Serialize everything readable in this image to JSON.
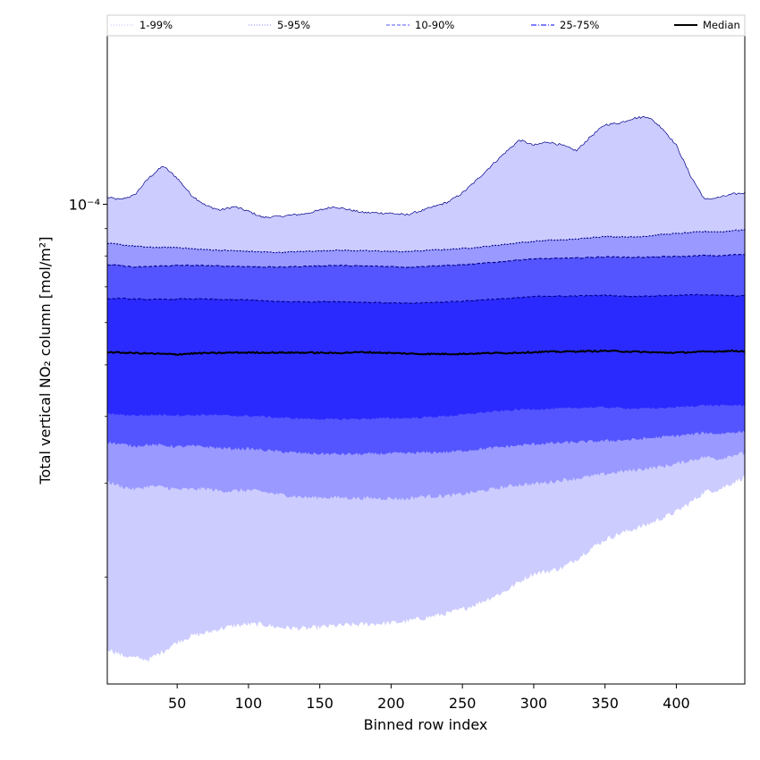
{
  "chart_data": {
    "type": "area",
    "title": "",
    "xlabel": "Binned row index",
    "ylabel": "Total vertical NO₂ column [mol/m²]",
    "yscale": "log",
    "xlim": [
      1,
      448
    ],
    "ylim": [
      1.26e-05,
      0.000207
    ],
    "grid": false,
    "x_ticks": [
      50,
      100,
      150,
      200,
      250,
      300,
      350,
      400
    ],
    "y_ticks": [
      {
        "value": 0.0001,
        "label": "10⁻⁴",
        "major": true
      },
      {
        "value": 2e-05,
        "label": "",
        "major": false
      },
      {
        "value": 3e-05,
        "label": "",
        "major": false
      },
      {
        "value": 4e-05,
        "label": "",
        "major": false
      },
      {
        "value": 5e-05,
        "label": "",
        "major": false
      },
      {
        "value": 6e-05,
        "label": "",
        "major": false
      },
      {
        "value": 7e-05,
        "label": "",
        "major": false
      },
      {
        "value": 8e-05,
        "label": "",
        "major": false
      },
      {
        "value": 9e-05,
        "label": "",
        "major": false
      }
    ],
    "legend_position": "top, above plot",
    "legend": [
      {
        "label": "1-99%",
        "color": "#ccccff",
        "style": "dotted"
      },
      {
        "label": "5-95%",
        "color": "#9999ff",
        "style": "dotted"
      },
      {
        "label": "10-90%",
        "color": "#7777ff",
        "style": "dashed"
      },
      {
        "label": "25-75%",
        "color": "#3333ff",
        "style": "dashdot"
      },
      {
        "label": "Median",
        "color": "#000000",
        "style": "solid"
      }
    ],
    "x_nodes": [
      1,
      10,
      20,
      30,
      40,
      50,
      60,
      70,
      80,
      90,
      100,
      110,
      120,
      140,
      160,
      180,
      200,
      210,
      220,
      240,
      250,
      260,
      270,
      280,
      290,
      300,
      310,
      320,
      330,
      340,
      350,
      360,
      370,
      380,
      390,
      400,
      410,
      420,
      430,
      440,
      448
    ],
    "bands": [
      {
        "name": "1-99%",
        "fill": "#ccccff",
        "edge": "#00008b",
        "upper": [
          0.000103,
          0.000102,
          0.000104,
          0.000112,
          0.000118,
          0.000112,
          0.000104,
          9.95e-05,
          9.75e-05,
          9.9e-05,
          9.7e-05,
          9.45e-05,
          9.48e-05,
          9.6e-05,
          9.9e-05,
          9.65e-05,
          9.62e-05,
          9.55e-05,
          9.7e-05,
          0.000101,
          0.000105,
          0.000111,
          0.000118,
          0.000125,
          0.000132,
          0.000129,
          0.000131,
          0.000129,
          0.000126,
          0.000134,
          0.000141,
          0.000142,
          0.000145,
          0.000146,
          0.000139,
          0.000129,
          0.000113,
          0.000102,
          0.000103,
          0.0001045,
          0.000105
        ],
        "lower": [
          1.47e-05,
          1.43e-05,
          1.41e-05,
          1.4e-05,
          1.45e-05,
          1.51e-05,
          1.55e-05,
          1.57e-05,
          1.6e-05,
          1.62e-05,
          1.63e-05,
          1.63e-05,
          1.61e-05,
          1.6e-05,
          1.62e-05,
          1.63e-05,
          1.64e-05,
          1.65e-05,
          1.67e-05,
          1.71e-05,
          1.74e-05,
          1.78e-05,
          1.83e-05,
          1.88e-05,
          1.96e-05,
          2.03e-05,
          2.05e-05,
          2.08e-05,
          2.16e-05,
          2.26e-05,
          2.35e-05,
          2.41e-05,
          2.46e-05,
          2.51e-05,
          2.58e-05,
          2.65e-05,
          2.76e-05,
          2.89e-05,
          2.92e-05,
          3.01e-05,
          3.08e-05
        ]
      },
      {
        "name": "5-95%",
        "fill": "#9999ff",
        "edge": "#00008b",
        "upper": [
          8.45e-05,
          8.4e-05,
          8.35e-05,
          8.3e-05,
          8.3e-05,
          8.3e-05,
          8.25e-05,
          8.22e-05,
          8.2e-05,
          8.18e-05,
          8.16e-05,
          8.14e-05,
          8.12e-05,
          8.16e-05,
          8.2e-05,
          8.18e-05,
          8.16e-05,
          8.15e-05,
          8.18e-05,
          8.23e-05,
          8.26e-05,
          8.3e-05,
          8.35e-05,
          8.41e-05,
          8.47e-05,
          8.52e-05,
          8.56e-05,
          8.57e-05,
          8.6e-05,
          8.66e-05,
          8.7e-05,
          8.69e-05,
          8.68e-05,
          8.72e-05,
          8.78e-05,
          8.81e-05,
          8.85e-05,
          8.89e-05,
          8.87e-05,
          8.93e-05,
          8.95e-05
        ],
        "lower": [
          3.02e-05,
          2.96e-05,
          2.92e-05,
          2.96e-05,
          2.95e-05,
          2.92e-05,
          2.92e-05,
          2.93e-05,
          2.9e-05,
          2.9e-05,
          2.91e-05,
          2.89e-05,
          2.86e-05,
          2.82e-05,
          2.82e-05,
          2.81e-05,
          2.81e-05,
          2.8e-05,
          2.83e-05,
          2.84e-05,
          2.86e-05,
          2.89e-05,
          2.92e-05,
          2.95e-05,
          2.98e-05,
          2.99e-05,
          3.01e-05,
          3.04e-05,
          3.06e-05,
          3.09e-05,
          3.12e-05,
          3.15e-05,
          3.17e-05,
          3.2e-05,
          3.22e-05,
          3.26e-05,
          3.31e-05,
          3.36e-05,
          3.33e-05,
          3.39e-05,
          3.41e-05
        ]
      },
      {
        "name": "10-90%",
        "fill": "#5555ff",
        "edge": "#00008b",
        "upper": [
          7.7e-05,
          7.68e-05,
          7.62e-05,
          7.64e-05,
          7.66e-05,
          7.68e-05,
          7.68e-05,
          7.67e-05,
          7.66e-05,
          7.65e-05,
          7.64e-05,
          7.63e-05,
          7.62e-05,
          7.65e-05,
          7.68e-05,
          7.66e-05,
          7.64e-05,
          7.62e-05,
          7.64e-05,
          7.68e-05,
          7.7e-05,
          7.73e-05,
          7.77e-05,
          7.82e-05,
          7.87e-05,
          7.9e-05,
          7.91e-05,
          7.92e-05,
          7.93e-05,
          7.95e-05,
          7.97e-05,
          7.96e-05,
          7.95e-05,
          7.96e-05,
          7.97e-05,
          7.98e-05,
          7.99e-05,
          8.02e-05,
          8e-05,
          8.04e-05,
          8.06e-05
        ],
        "lower": [
          3.58e-05,
          3.55e-05,
          3.52e-05,
          3.54e-05,
          3.53e-05,
          3.51e-05,
          3.52e-05,
          3.51e-05,
          3.49e-05,
          3.48e-05,
          3.48e-05,
          3.46e-05,
          3.44e-05,
          3.41e-05,
          3.4e-05,
          3.4e-05,
          3.41e-05,
          3.41e-05,
          3.42e-05,
          3.43e-05,
          3.45e-05,
          3.47e-05,
          3.49e-05,
          3.51e-05,
          3.53e-05,
          3.55e-05,
          3.56e-05,
          3.57e-05,
          3.58e-05,
          3.59e-05,
          3.6e-05,
          3.61e-05,
          3.62e-05,
          3.64e-05,
          3.66e-05,
          3.68e-05,
          3.7e-05,
          3.73e-05,
          3.71e-05,
          3.74e-05,
          3.74e-05
        ]
      },
      {
        "name": "25-75%",
        "fill": "#2a2aff",
        "edge": "#00008b",
        "upper": [
          6.65e-05,
          6.66e-05,
          6.64e-05,
          6.63e-05,
          6.63e-05,
          6.64e-05,
          6.65e-05,
          6.64e-05,
          6.63e-05,
          6.62e-05,
          6.62e-05,
          6.59e-05,
          6.57e-05,
          6.56e-05,
          6.57e-05,
          6.55e-05,
          6.53e-05,
          6.52e-05,
          6.53e-05,
          6.56e-05,
          6.58e-05,
          6.61e-05,
          6.63e-05,
          6.65e-05,
          6.68e-05,
          6.71e-05,
          6.73e-05,
          6.72e-05,
          6.73e-05,
          6.74e-05,
          6.75e-05,
          6.73e-05,
          6.72e-05,
          6.73e-05,
          6.74e-05,
          6.75e-05,
          6.76e-05,
          6.77e-05,
          6.75e-05,
          6.74e-05,
          6.73e-05
        ],
        "lower": [
          4.05e-05,
          4.03e-05,
          4.02e-05,
          4.02e-05,
          4.03e-05,
          4.02e-05,
          4.02e-05,
          4.03e-05,
          4.02e-05,
          4.01e-05,
          4.01e-05,
          4e-05,
          3.98e-05,
          3.96e-05,
          3.95e-05,
          3.96e-05,
          3.97e-05,
          3.97e-05,
          3.98e-05,
          4.01e-05,
          4.03e-05,
          4.06e-05,
          4.08e-05,
          4.1e-05,
          4.12e-05,
          4.13e-05,
          4.13e-05,
          4.14e-05,
          4.15e-05,
          4.16e-05,
          4.16e-05,
          4.15e-05,
          4.14e-05,
          4.14e-05,
          4.15e-05,
          4.16e-05,
          4.18e-05,
          4.2e-05,
          4.19e-05,
          4.2e-05,
          4.19e-05
        ]
      }
    ],
    "median": [
      5.28e-05,
      5.27e-05,
      5.26e-05,
      5.25e-05,
      5.24e-05,
      5.23e-05,
      5.25e-05,
      5.26e-05,
      5.26e-05,
      5.27e-05,
      5.27e-05,
      5.27e-05,
      5.27e-05,
      5.27e-05,
      5.26e-05,
      5.28e-05,
      5.26e-05,
      5.25e-05,
      5.24e-05,
      5.24e-05,
      5.24e-05,
      5.25e-05,
      5.26e-05,
      5.26e-05,
      5.27e-05,
      5.28e-05,
      5.29e-05,
      5.29e-05,
      5.3e-05,
      5.3e-05,
      5.31e-05,
      5.3e-05,
      5.29e-05,
      5.28e-05,
      5.27e-05,
      5.27e-05,
      5.28e-05,
      5.29e-05,
      5.3e-05,
      5.31e-05,
      5.3e-05
    ]
  }
}
